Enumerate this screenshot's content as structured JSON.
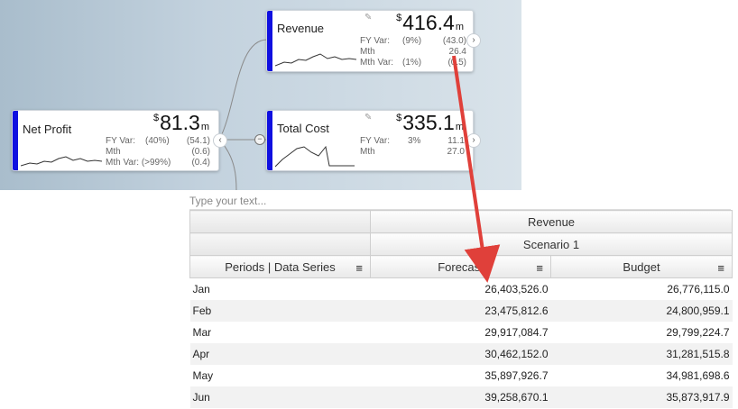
{
  "cards": {
    "revenue": {
      "title": "Revenue",
      "currency": "$",
      "value": "416.4",
      "unit": "m",
      "rows": [
        {
          "label": "FY Var:",
          "pct": "(9%)",
          "amount": "(43.0)"
        },
        {
          "label": "Mth",
          "pct": "",
          "amount": "26.4"
        },
        {
          "label": "Mth Var:",
          "pct": "(1%)",
          "amount": "(0.5)"
        }
      ]
    },
    "net_profit": {
      "title": "Net Profit",
      "currency": "$",
      "value": "81.3",
      "unit": "m",
      "rows": [
        {
          "label": "FY Var:",
          "pct": "(40%)",
          "amount": "(54.1)"
        },
        {
          "label": "Mth",
          "pct": "",
          "amount": "(0.6)"
        },
        {
          "label": "Mth Var: (>99%)",
          "pct": "",
          "amount": "(0.4)"
        }
      ]
    },
    "total_cost": {
      "title": "Total Cost",
      "currency": "$",
      "value": "335.1",
      "unit": "m",
      "rows": [
        {
          "label": "FY Var:",
          "pct": "3%",
          "amount": "11.1"
        },
        {
          "label": "Mth",
          "pct": "",
          "amount": "27.0"
        }
      ]
    }
  },
  "icons": {
    "pencil": "pencil-icon",
    "chevron_right": "›",
    "chevron_left": "‹",
    "collapse": "−",
    "menu": "≡"
  },
  "colors": {
    "stripe": "#1010e0",
    "arrow": "#e0403a",
    "background_gradient_start": "#a9bdcc"
  },
  "textbox": {
    "placeholder": "Type your text..."
  },
  "grid": {
    "header_group": "Revenue",
    "scenario": "Scenario 1",
    "row_header": "Periods | Data Series",
    "columns": [
      "Forecast",
      "Budget"
    ],
    "rows": [
      {
        "period": "Jan",
        "forecast": "26,403,526.0",
        "budget": "26,776,115.0"
      },
      {
        "period": "Feb",
        "forecast": "23,475,812.6",
        "budget": "24,800,959.1"
      },
      {
        "period": "Mar",
        "forecast": "29,917,084.7",
        "budget": "29,799,224.7"
      },
      {
        "period": "Apr",
        "forecast": "30,462,152.0",
        "budget": "31,281,515.8"
      },
      {
        "period": "May",
        "forecast": "35,897,926.7",
        "budget": "34,981,698.6"
      },
      {
        "period": "Jun",
        "forecast": "39,258,670.1",
        "budget": "35,873,917.9"
      }
    ]
  }
}
